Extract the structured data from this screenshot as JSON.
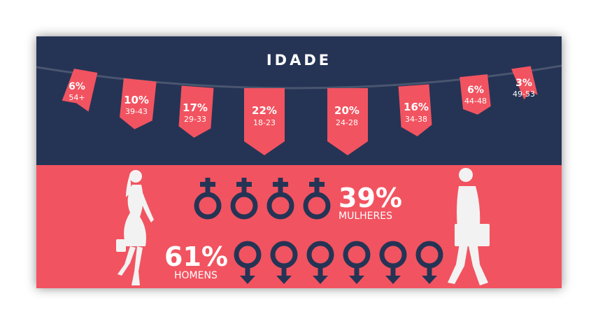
{
  "title": "IDADE",
  "age_flags": [
    {
      "pct": "6%",
      "range": "54+"
    },
    {
      "pct": "10%",
      "range": "39-43"
    },
    {
      "pct": "17%",
      "range": "29-33"
    },
    {
      "pct": "22%",
      "range": "18-23"
    },
    {
      "pct": "20%",
      "range": "24-28"
    },
    {
      "pct": "16%",
      "range": "34-38"
    },
    {
      "pct": "6%",
      "range": "44-48"
    },
    {
      "pct": "3%",
      "range": "49-53"
    }
  ],
  "women": {
    "pct": "39%",
    "label": "MULHERES",
    "symbol_count": 4
  },
  "men": {
    "pct": "61%",
    "label": "HOMENS",
    "symbol_count": 6
  },
  "colors": {
    "navy": "#253455",
    "coral": "#f25360",
    "white": "#ffffff",
    "silhouette": "#f2f2f2"
  },
  "icons": [
    "female-symbol-icon",
    "male-symbol-icon",
    "woman-silhouette-icon",
    "businessman-silhouette-icon"
  ]
}
